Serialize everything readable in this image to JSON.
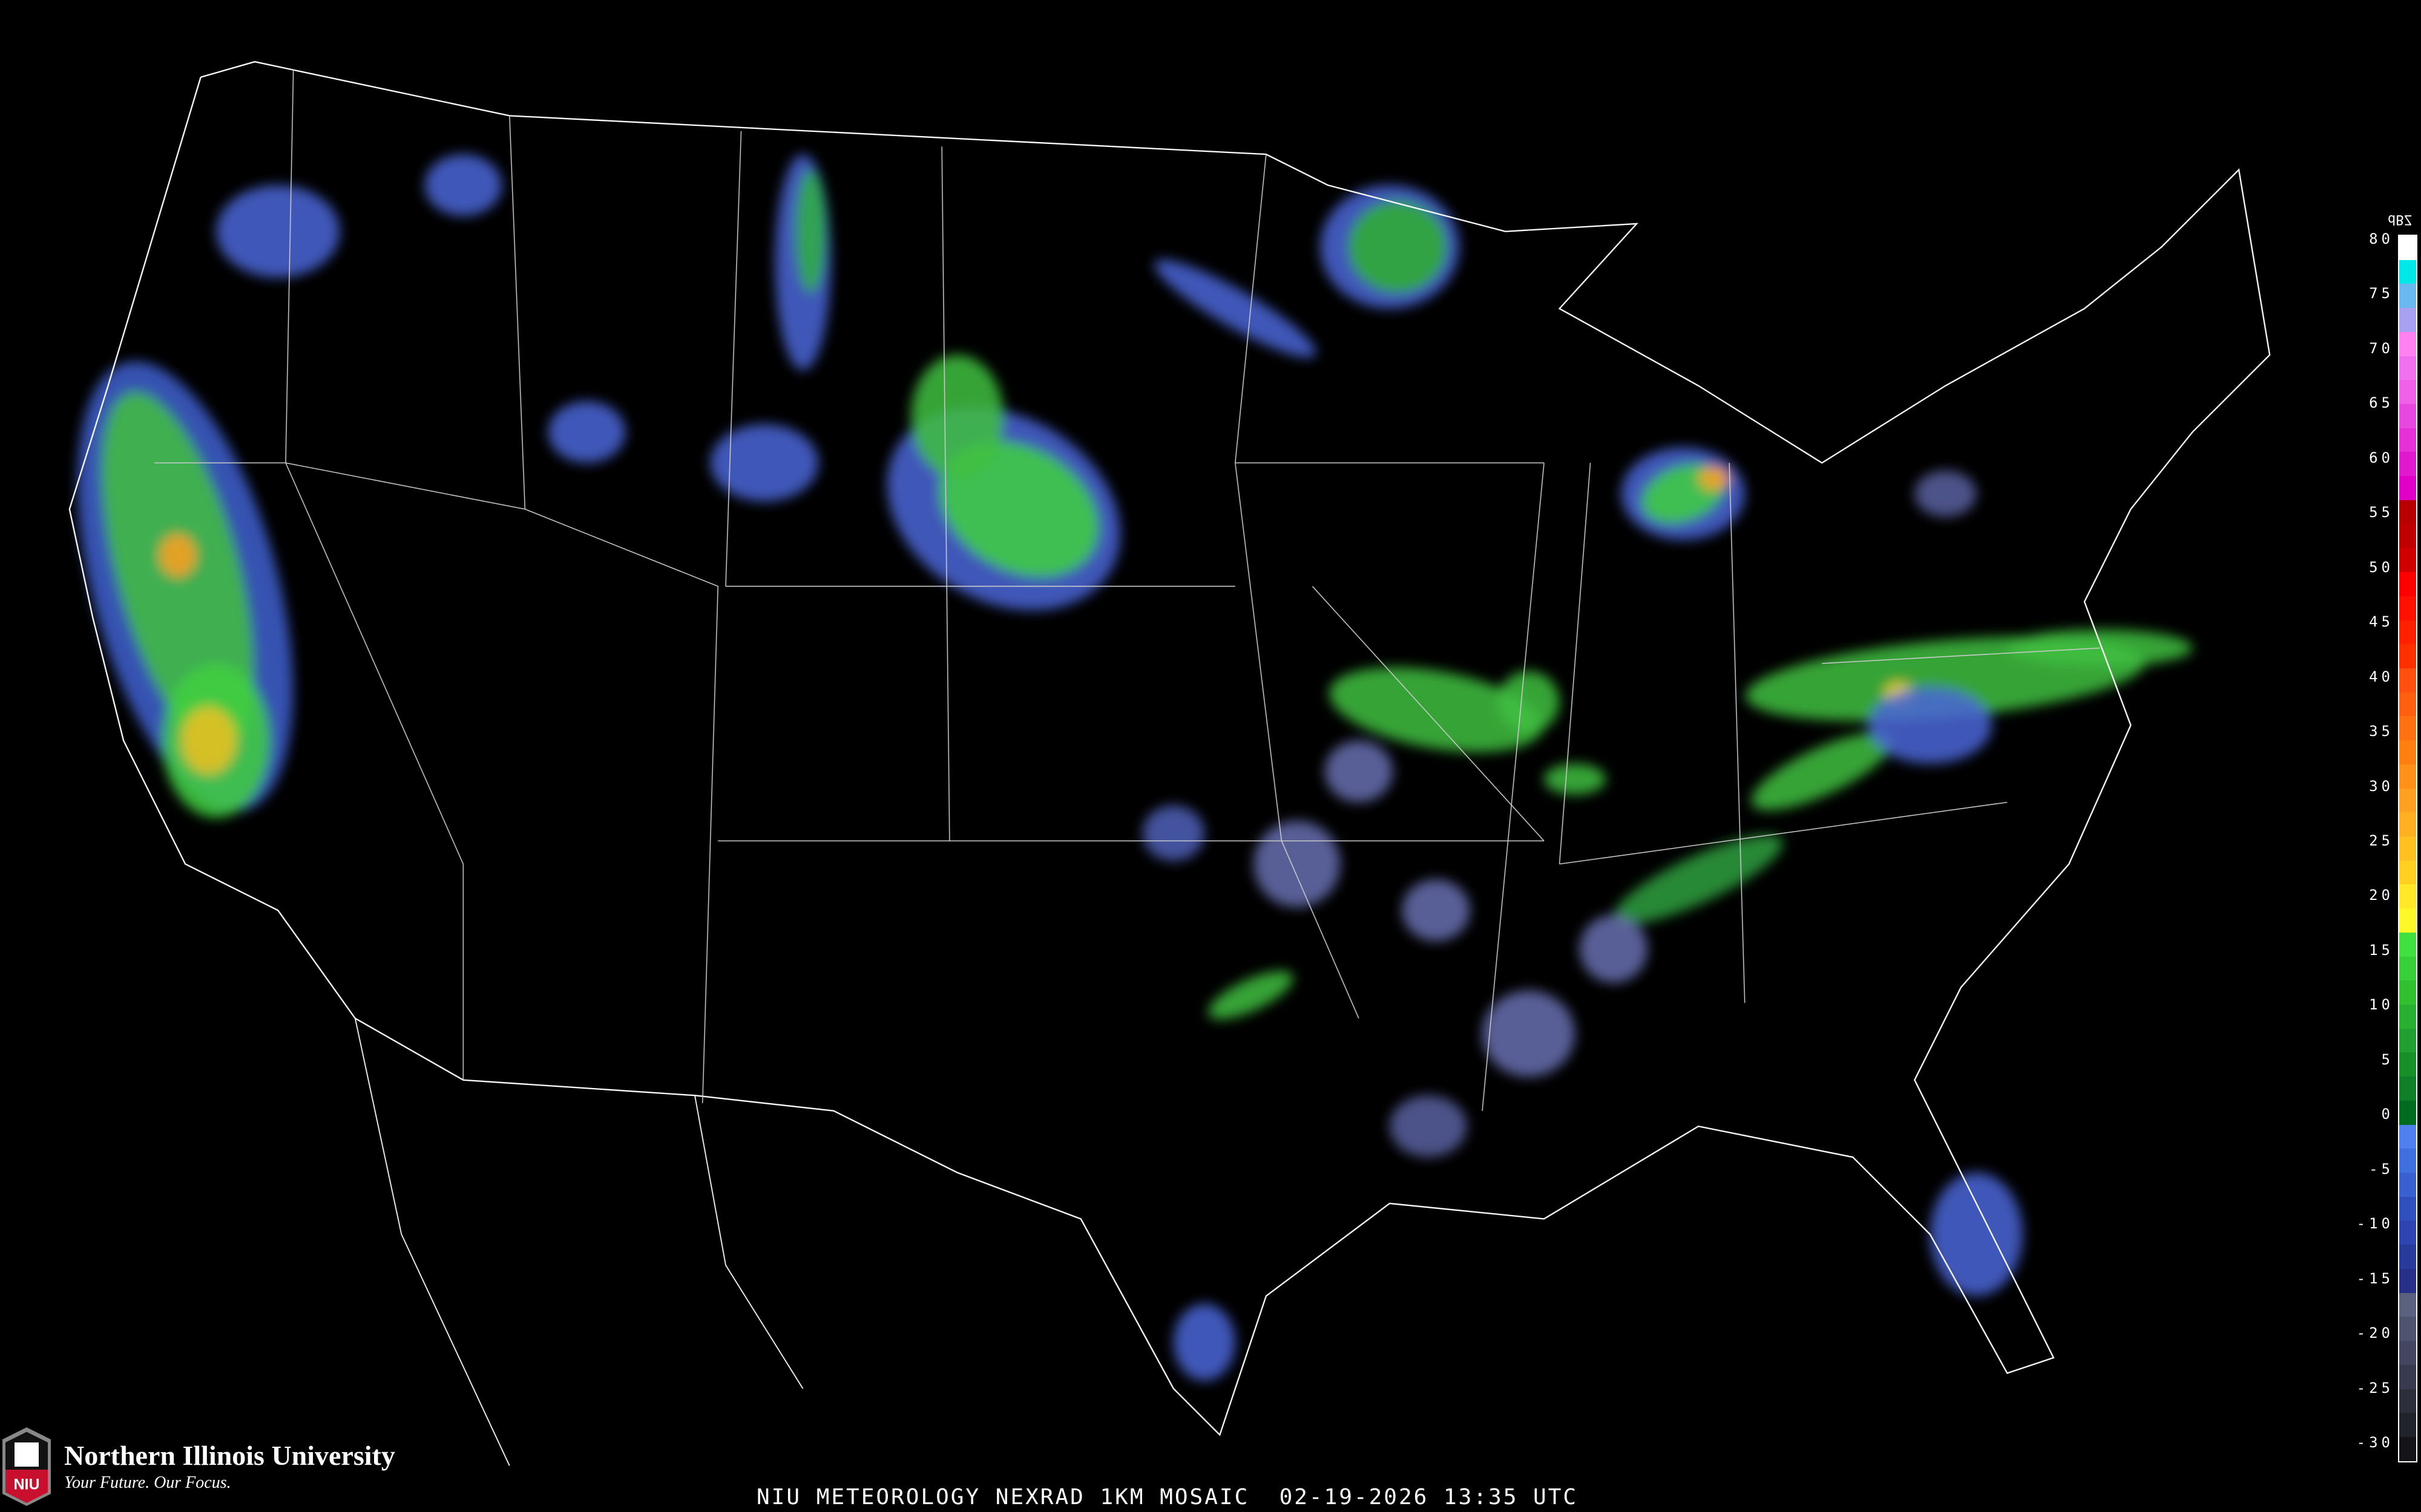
{
  "title": "NIU METEOROLOGY NEXRAD 1KM MOSAIC  02-19-2026 13:35 UTC",
  "logo": {
    "name": "Northern Illinois University",
    "tagline": "Your Future. Our Focus.",
    "badge": "NIU",
    "brand_color": "#c8102e"
  },
  "legend": {
    "unit": "dBZ",
    "ticks": [
      "80",
      "75",
      "70",
      "65",
      "60",
      "55",
      "50",
      "45",
      "40",
      "35",
      "30",
      "25",
      "20",
      "15",
      "10",
      "5",
      "0",
      "-5",
      "-10",
      "-15",
      "-20",
      "-25",
      "-30"
    ],
    "colors": [
      "#ffffff",
      "#00e8e8",
      "#6ab8f0",
      "#a8a0f0",
      "#ff80f0",
      "#f070f0",
      "#f060e8",
      "#e848e0",
      "#e830d8",
      "#e018d0",
      "#e000c8",
      "#b80000",
      "#c00000",
      "#d00000",
      "#ff0000",
      "#ff1000",
      "#ff2000",
      "#ff3000",
      "#ff5010",
      "#ff6010",
      "#ff7010",
      "#ff8010",
      "#ff9018",
      "#ffa020",
      "#ffb020",
      "#ffc020",
      "#ffd020",
      "#ffe828",
      "#fff828",
      "#40e040",
      "#38d038",
      "#30c030",
      "#28b030",
      "#20a030",
      "#189028",
      "#108028",
      "#006c20",
      "#5080f0",
      "#4070e0",
      "#3860d0",
      "#3050c0",
      "#2e44b0",
      "#283a9c",
      "#263088",
      "#5a6280",
      "#4e5470",
      "#424660",
      "#383a50",
      "#2c2e3c",
      "#20222c",
      "#141418"
    ]
  }
}
